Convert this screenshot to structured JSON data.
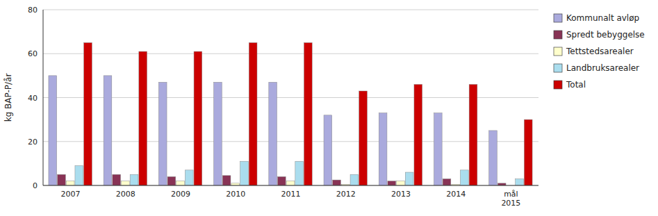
{
  "chart_data": {
    "type": "bar",
    "categories": [
      "2007",
      "2008",
      "2009",
      "2010",
      "2011",
      "2012",
      "2013",
      "2014",
      "mål\n2015"
    ],
    "series": [
      {
        "name": "Kommunalt avløp",
        "color": "#aaaadd",
        "values": [
          50,
          50,
          47,
          47,
          47,
          32,
          33,
          33,
          25
        ]
      },
      {
        "name": "Spredt bebyggelse",
        "color": "#883355",
        "values": [
          5,
          5,
          4,
          4.5,
          4,
          2.5,
          2,
          3,
          1
        ]
      },
      {
        "name": "Tettstedsarealer",
        "color": "#ffffcc",
        "values": [
          2,
          2,
          2,
          1,
          2,
          0.5,
          2,
          0.5,
          0
        ]
      },
      {
        "name": "Landbruksarealer",
        "color": "#aaddee",
        "values": [
          9,
          5,
          7,
          11,
          11,
          5,
          6,
          7,
          3
        ]
      },
      {
        "name": "Total",
        "color": "#cc0000",
        "values": [
          65,
          61,
          61,
          65,
          65,
          43,
          46,
          46,
          30
        ]
      }
    ],
    "ylabel": "kg BAP-P/år",
    "ylim": [
      0,
      80
    ],
    "yticks": [
      0,
      20,
      40,
      60,
      80
    ],
    "grid": true,
    "legend": "right"
  }
}
